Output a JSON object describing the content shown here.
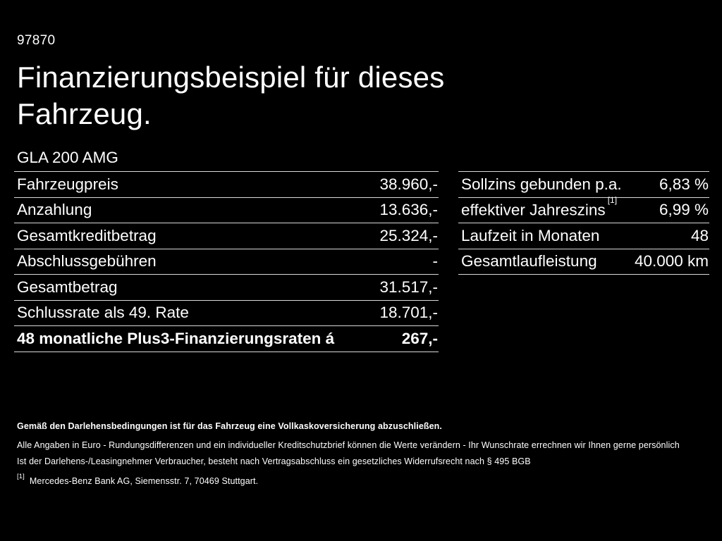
{
  "colors": {
    "background": "#000000",
    "text": "#ffffff",
    "divider": "#d9d9d9"
  },
  "header": {
    "ref_number": "97870",
    "title_line1": "Finanzierungsbeispiel für dieses",
    "title_line2": "Fahrzeug.",
    "vehicle_model": "GLA 200 AMG"
  },
  "left_table": {
    "rows": [
      {
        "label": "Fahrzeugpreis",
        "value": "38.960,-"
      },
      {
        "label": "Anzahlung",
        "value": "13.636,-"
      },
      {
        "label": "Gesamtkreditbetrag",
        "value": "25.324,-"
      },
      {
        "label": "Abschlussgebühren",
        "value": "-"
      },
      {
        "label": "Gesamtbetrag",
        "value": "31.517,-"
      },
      {
        "label": "Schlussrate als 49. Rate",
        "value": "18.701,-"
      },
      {
        "label": "48 monatliche Plus3-Finanzierungsraten á",
        "value": "267,-"
      }
    ]
  },
  "right_table": {
    "rows": [
      {
        "label": "Sollzins gebunden p.a.",
        "value": "6,83 %"
      },
      {
        "label": "effektiver Jahreszins",
        "label_sup": "[1]",
        "value": "6,99 %"
      },
      {
        "label": "Laufzeit in Monaten",
        "value": "48"
      },
      {
        "label": "Gesamtlaufleistung",
        "value": "40.000 km"
      }
    ]
  },
  "footer": {
    "insurance_note": "Gemäß den Darlehensbedingungen ist für das Fahrzeug eine Vollkaskoversicherung abzuschließen.",
    "disclaimer_line1": "Alle Angaben in Euro - Rundungsdifferenzen und ein individueller Kreditschutzbrief können die Werte verändern - Ihr Wunschrate errechnen wir Ihnen gerne persönlich",
    "disclaimer_line2": "Ist der Darlehens-/Leasingnehmer Verbraucher, besteht nach Vertragsabschluss ein gesetzliches Widerrufsrecht nach § 495 BGB",
    "footnote_marker": "[1]",
    "footnote_text": "Mercedes-Benz Bank AG, Siemensstr. 7, 70469 Stuttgart."
  }
}
